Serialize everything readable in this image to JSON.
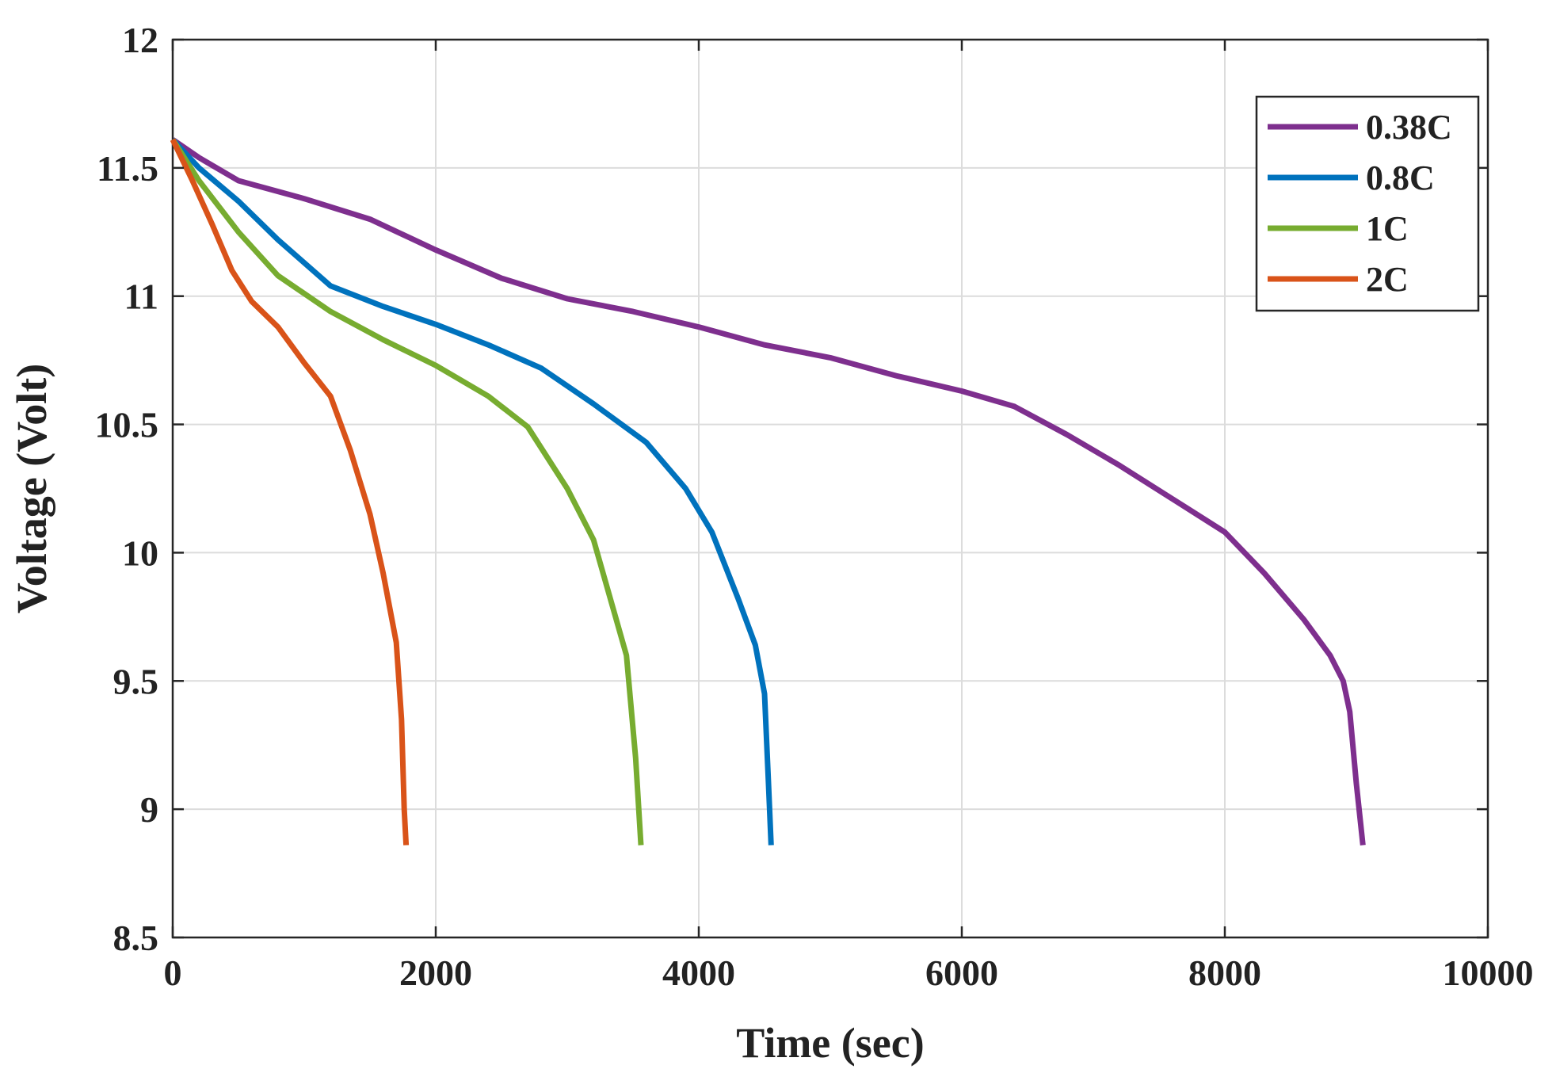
{
  "chart_data": {
    "type": "line",
    "title": "",
    "xlabel": "Time (sec)",
    "ylabel": "Voltage (Volt)",
    "xlim": [
      0,
      10000
    ],
    "ylim": [
      8.5,
      12
    ],
    "xticks": [
      0,
      2000,
      4000,
      6000,
      8000,
      10000
    ],
    "xtick_labels": [
      "0",
      "2000",
      "4000",
      "6000",
      "8000",
      "10000"
    ],
    "yticks": [
      8.5,
      9,
      9.5,
      10,
      10.5,
      11,
      11.5,
      12
    ],
    "ytick_labels": [
      "8.5",
      "9",
      "9.5",
      "10",
      "10.5",
      "11",
      "11.5",
      "12"
    ],
    "grid": true,
    "legend_position": "top-right",
    "series": [
      {
        "name": "0.38C",
        "color": "#7E2F8E",
        "points": [
          [
            0,
            11.61
          ],
          [
            200,
            11.54
          ],
          [
            500,
            11.45
          ],
          [
            1000,
            11.38
          ],
          [
            1500,
            11.3
          ],
          [
            2000,
            11.18
          ],
          [
            2500,
            11.07
          ],
          [
            3000,
            10.99
          ],
          [
            3500,
            10.94
          ],
          [
            4000,
            10.88
          ],
          [
            4500,
            10.81
          ],
          [
            5000,
            10.76
          ],
          [
            5500,
            10.69
          ],
          [
            6000,
            10.63
          ],
          [
            6400,
            10.57
          ],
          [
            6800,
            10.46
          ],
          [
            7200,
            10.34
          ],
          [
            7600,
            10.21
          ],
          [
            8000,
            10.08
          ],
          [
            8300,
            9.92
          ],
          [
            8600,
            9.74
          ],
          [
            8800,
            9.6
          ],
          [
            8900,
            9.5
          ],
          [
            8950,
            9.38
          ],
          [
            9000,
            9.1
          ],
          [
            9050,
            8.86
          ]
        ]
      },
      {
        "name": "0.8C",
        "color": "#0072BD",
        "points": [
          [
            0,
            11.61
          ],
          [
            200,
            11.5
          ],
          [
            500,
            11.37
          ],
          [
            800,
            11.22
          ],
          [
            1200,
            11.04
          ],
          [
            1600,
            10.96
          ],
          [
            2000,
            10.89
          ],
          [
            2400,
            10.81
          ],
          [
            2800,
            10.72
          ],
          [
            3200,
            10.58
          ],
          [
            3600,
            10.43
          ],
          [
            3900,
            10.25
          ],
          [
            4100,
            10.08
          ],
          [
            4300,
            9.82
          ],
          [
            4430,
            9.64
          ],
          [
            4500,
            9.45
          ],
          [
            4530,
            9.1
          ],
          [
            4550,
            8.86
          ]
        ]
      },
      {
        "name": "1C",
        "color": "#77AC30",
        "points": [
          [
            0,
            11.61
          ],
          [
            200,
            11.45
          ],
          [
            500,
            11.25
          ],
          [
            800,
            11.08
          ],
          [
            1200,
            10.94
          ],
          [
            1600,
            10.83
          ],
          [
            2000,
            10.73
          ],
          [
            2400,
            10.61
          ],
          [
            2700,
            10.49
          ],
          [
            3000,
            10.25
          ],
          [
            3200,
            10.05
          ],
          [
            3350,
            9.78
          ],
          [
            3450,
            9.6
          ],
          [
            3520,
            9.2
          ],
          [
            3560,
            8.86
          ]
        ]
      },
      {
        "name": "2C",
        "color": "#D95319",
        "points": [
          [
            0,
            11.61
          ],
          [
            150,
            11.45
          ],
          [
            300,
            11.28
          ],
          [
            450,
            11.1
          ],
          [
            600,
            10.98
          ],
          [
            800,
            10.88
          ],
          [
            1000,
            10.74
          ],
          [
            1200,
            10.61
          ],
          [
            1350,
            10.4
          ],
          [
            1500,
            10.15
          ],
          [
            1600,
            9.92
          ],
          [
            1700,
            9.65
          ],
          [
            1740,
            9.35
          ],
          [
            1760,
            9.0
          ],
          [
            1775,
            8.86
          ]
        ]
      }
    ]
  }
}
